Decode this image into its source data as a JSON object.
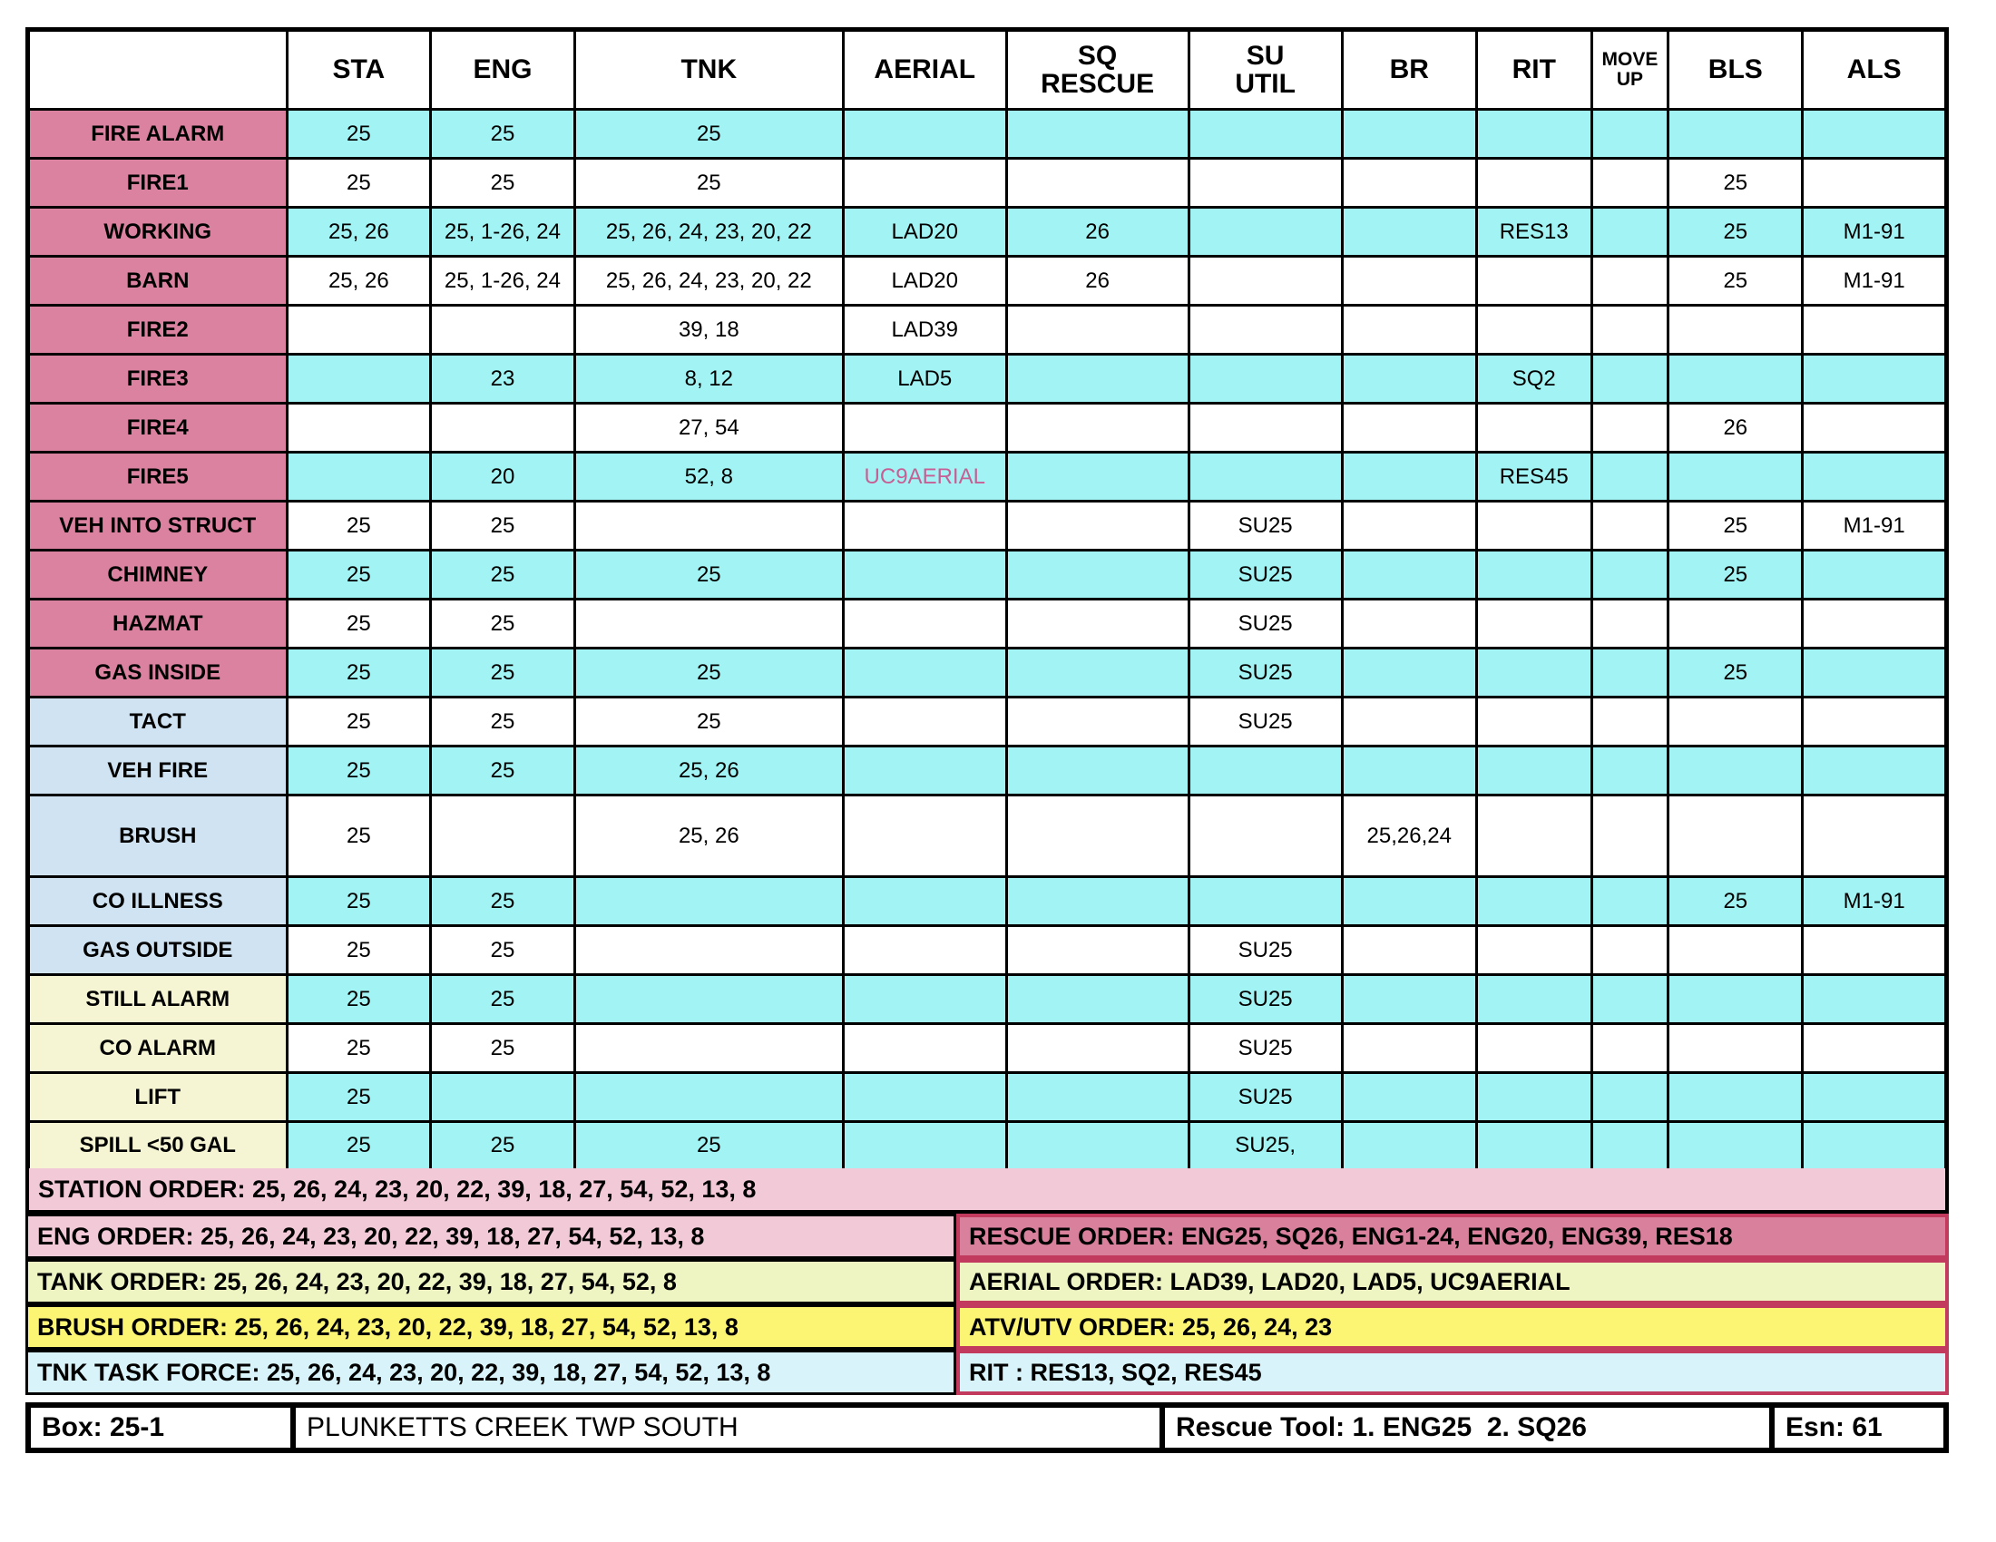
{
  "colors": {
    "cyan_row": "#a2f4f4",
    "white_row": "#ffffff",
    "pink_label": "#db82a0",
    "blue_label": "#cfe3f3",
    "yellow_label": "#f5f5d3",
    "station_pink": "#f2c9d7",
    "rescue_rose": "#d9809c",
    "pale_green": "#eef5c3",
    "yellow_order": "#fcf473",
    "pale_cyan": "#d8f4fa",
    "crimson_border": "#c23b5f",
    "magenta_text": "#c75f95"
  },
  "table": {
    "columns": [
      {
        "label": ""
      },
      {
        "label": "STA"
      },
      {
        "label": "ENG"
      },
      {
        "label": "TNK"
      },
      {
        "label": "AERIAL"
      },
      {
        "label": "SQ\nRESCUE"
      },
      {
        "label": "SU\nUTIL"
      },
      {
        "label": "BR"
      },
      {
        "label": "RIT"
      },
      {
        "label": "MOVE\nUP",
        "small": true
      },
      {
        "label": "BLS"
      },
      {
        "label": "ALS"
      }
    ],
    "rows": [
      {
        "label": "FIRE ALARM",
        "label_bg": "pink_label",
        "row_bg": "cyan_row",
        "cells": [
          "25",
          "25",
          "25",
          "",
          "",
          "",
          "",
          "",
          "",
          "",
          ""
        ]
      },
      {
        "label": "FIRE1",
        "label_bg": "pink_label",
        "row_bg": "white_row",
        "cells": [
          "25",
          "25",
          "25",
          "",
          "",
          "",
          "",
          "",
          "",
          "25",
          ""
        ]
      },
      {
        "label": "WORKING",
        "label_bg": "pink_label",
        "row_bg": "cyan_row",
        "cells": [
          "25, 26",
          "25, 1-26, 24",
          "25, 26, 24, 23, 20, 22",
          "LAD20",
          "26",
          "",
          "",
          "RES13",
          "",
          "25",
          "M1-91"
        ]
      },
      {
        "label": "BARN",
        "label_bg": "pink_label",
        "row_bg": "white_row",
        "cells": [
          "25, 26",
          "25, 1-26, 24",
          "25, 26, 24, 23, 20, 22",
          "LAD20",
          "26",
          "",
          "",
          "",
          "",
          "25",
          "M1-91"
        ]
      },
      {
        "label": "FIRE2",
        "label_bg": "pink_label",
        "row_bg": "white_row",
        "cells": [
          "",
          "",
          "39, 18",
          "LAD39",
          "",
          "",
          "",
          "",
          "",
          "",
          ""
        ]
      },
      {
        "label": "FIRE3",
        "label_bg": "pink_label",
        "row_bg": "cyan_row",
        "cells": [
          "",
          "23",
          "8, 12",
          "LAD5",
          "",
          "",
          "",
          "SQ2",
          "",
          "",
          ""
        ]
      },
      {
        "label": "FIRE4",
        "label_bg": "pink_label",
        "row_bg": "white_row",
        "cells": [
          "",
          "",
          "27, 54",
          "",
          "",
          "",
          "",
          "",
          "",
          "26",
          ""
        ]
      },
      {
        "label": "FIRE5",
        "label_bg": "pink_label",
        "row_bg": "cyan_row",
        "cells": [
          "",
          "20",
          "52, 8",
          {
            "text": "UC9AERIAL",
            "color": "magenta_text"
          },
          "",
          "",
          "",
          "RES45",
          "",
          "",
          ""
        ]
      },
      {
        "label": "VEH INTO STRUCT",
        "label_bg": "pink_label",
        "row_bg": "white_row",
        "cells": [
          "25",
          "25",
          "",
          "",
          "",
          "SU25",
          "",
          "",
          "",
          "25",
          "M1-91"
        ]
      },
      {
        "label": "CHIMNEY",
        "label_bg": "pink_label",
        "row_bg": "cyan_row",
        "cells": [
          "25",
          "25",
          "25",
          "",
          "",
          "SU25",
          "",
          "",
          "",
          "25",
          ""
        ]
      },
      {
        "label": "HAZMAT",
        "label_bg": "pink_label",
        "row_bg": "white_row",
        "cells": [
          "25",
          "25",
          "",
          "",
          "",
          "SU25",
          "",
          "",
          "",
          "",
          ""
        ]
      },
      {
        "label": "GAS INSIDE",
        "label_bg": "pink_label",
        "row_bg": "cyan_row",
        "cells": [
          "25",
          "25",
          "25",
          "",
          "",
          "SU25",
          "",
          "",
          "",
          "25",
          ""
        ]
      },
      {
        "label": "TACT",
        "label_bg": "blue_label",
        "row_bg": "white_row",
        "cells": [
          "25",
          "25",
          "25",
          "",
          "",
          "SU25",
          "",
          "",
          "",
          "",
          ""
        ]
      },
      {
        "label": "VEH FIRE",
        "label_bg": "blue_label",
        "row_bg": "cyan_row",
        "cells": [
          "25",
          "25",
          "25, 26",
          "",
          "",
          "",
          "",
          "",
          "",
          "",
          ""
        ]
      },
      {
        "label": "BRUSH",
        "label_bg": "blue_label",
        "row_bg": "white_row",
        "tall": true,
        "cells": [
          "25",
          "",
          "25, 26",
          "",
          "",
          "",
          "25,26,24",
          "",
          "",
          "",
          ""
        ]
      },
      {
        "label": "CO ILLNESS",
        "label_bg": "blue_label",
        "row_bg": "cyan_row",
        "cells": [
          "25",
          "25",
          "",
          "",
          "",
          "",
          "",
          "",
          "",
          "25",
          "M1-91"
        ]
      },
      {
        "label": "GAS OUTSIDE",
        "label_bg": "blue_label",
        "row_bg": "white_row",
        "cells": [
          "25",
          "25",
          "",
          "",
          "",
          "SU25",
          "",
          "",
          "",
          "",
          ""
        ]
      },
      {
        "label": "STILL ALARM",
        "label_bg": "yellow_label",
        "row_bg": "cyan_row",
        "cells": [
          "25",
          "25",
          "",
          "",
          "",
          "SU25",
          "",
          "",
          "",
          "",
          ""
        ]
      },
      {
        "label": "CO ALARM",
        "label_bg": "yellow_label",
        "row_bg": "white_row",
        "cells": [
          "25",
          "25",
          "",
          "",
          "",
          "SU25",
          "",
          "",
          "",
          "",
          ""
        ]
      },
      {
        "label": "LIFT",
        "label_bg": "yellow_label",
        "row_bg": "cyan_row",
        "cells": [
          "25",
          "",
          "",
          "",
          "",
          "SU25",
          "",
          "",
          "",
          "",
          ""
        ]
      },
      {
        "label": "SPILL <50 GAL",
        "label_bg": "yellow_label",
        "row_bg": "cyan_row",
        "cells": [
          "25",
          "25",
          "25",
          "",
          "",
          "SU25,",
          "",
          "",
          "",
          "",
          ""
        ]
      }
    ]
  },
  "orders": {
    "station": {
      "text": "STATION ORDER: 25, 26, 24, 23, 20, 22, 39, 18, 27, 54, 52, 13, 8",
      "bg": "station_pink"
    },
    "pairs": [
      {
        "left": {
          "text": "ENG ORDER: 25, 26, 24, 23, 20, 22, 39, 18, 27, 54, 52, 13, 8",
          "bg": "station_pink"
        },
        "right": {
          "text": "RESCUE ORDER: ENG25, SQ26, ENG1-24, ENG20, ENG39, RES18",
          "bg": "rescue_rose"
        }
      },
      {
        "left": {
          "text": "TANK ORDER: 25, 26, 24, 23, 20, 22, 39, 18, 27, 54, 52, 8",
          "bg": "pale_green"
        },
        "right": {
          "text": "AERIAL ORDER: LAD39, LAD20, LAD5, UC9AERIAL",
          "bg": "pale_green"
        }
      },
      {
        "left": {
          "text": "BRUSH ORDER: 25, 26, 24, 23, 20, 22, 39, 18, 27, 54, 52, 13, 8",
          "bg": "yellow_order"
        },
        "right": {
          "text": "ATV/UTV ORDER: 25, 26, 24, 23",
          "bg": "yellow_order"
        }
      },
      {
        "left": {
          "text": "TNK TASK FORCE: 25, 26, 24, 23, 20, 22, 39, 18, 27, 54, 52, 13, 8",
          "bg": "pale_cyan"
        },
        "right": {
          "text": "RIT : RES13, SQ2, RES45",
          "bg": "pale_cyan"
        }
      }
    ]
  },
  "footer": {
    "cells": [
      {
        "text": "Box: 25-1",
        "bold": true
      },
      {
        "text": "PLUNKETTS CREEK TWP SOUTH",
        "bold": false
      },
      {
        "text": "Rescue Tool: 1. ENG25  2. SQ26",
        "bold": true
      },
      {
        "text": "Esn: 61",
        "bold": true
      }
    ]
  }
}
